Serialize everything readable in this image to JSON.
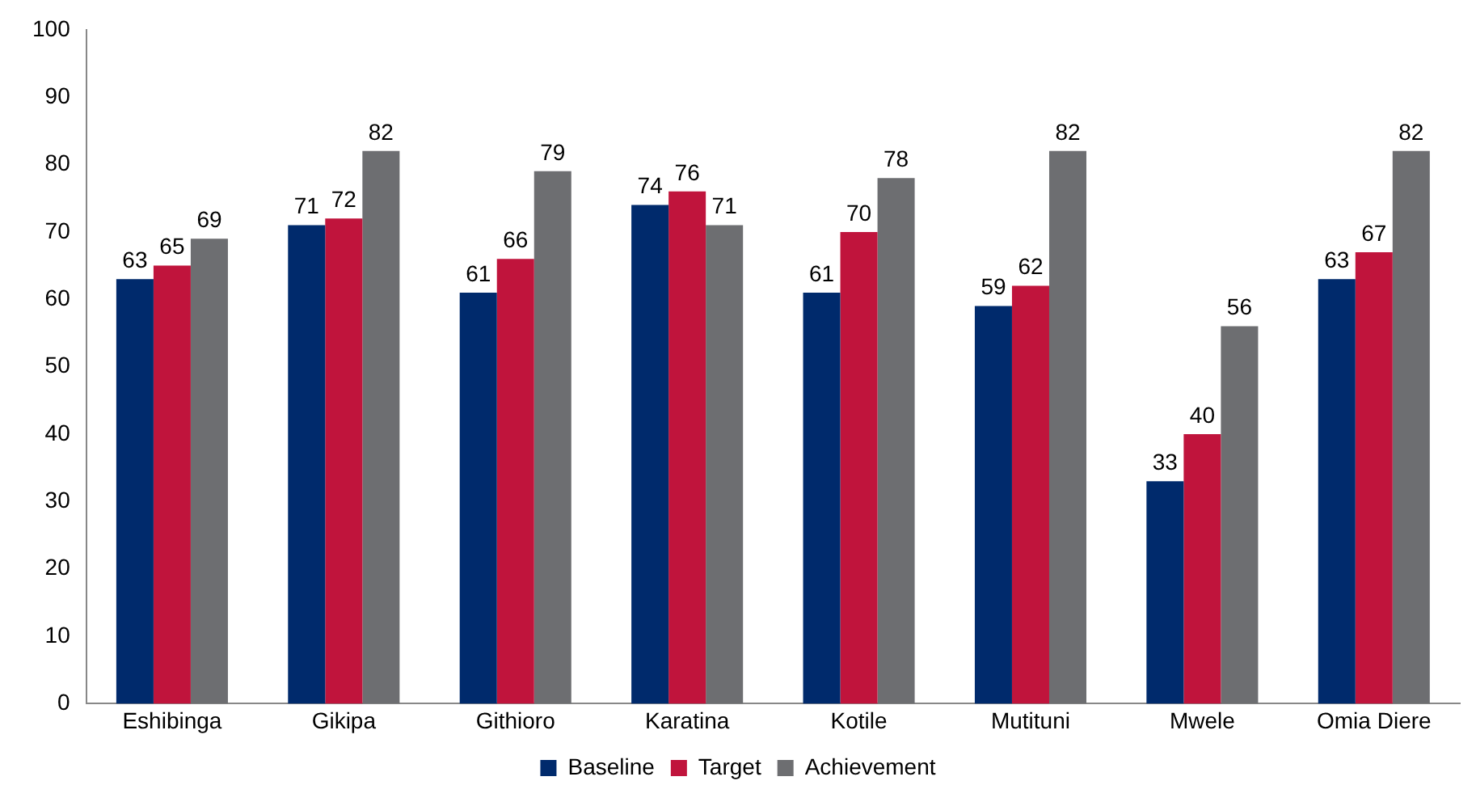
{
  "chart_data": {
    "type": "bar",
    "categories": [
      "Eshibinga",
      "Gikipa",
      "Githioro",
      "Karatina",
      "Kotile",
      "Mutituni",
      "Mwele",
      "Omia Diere"
    ],
    "series": [
      {
        "name": "Baseline",
        "color": "#002a6c",
        "values": [
          63,
          71,
          61,
          74,
          61,
          59,
          33,
          63
        ]
      },
      {
        "name": "Target",
        "color": "#c0143c",
        "values": [
          65,
          72,
          66,
          76,
          70,
          62,
          40,
          67
        ]
      },
      {
        "name": "Achievement",
        "color": "#6d6e71",
        "values": [
          69,
          82,
          79,
          71,
          78,
          82,
          56,
          82
        ]
      }
    ],
    "ylim": [
      0,
      100
    ],
    "yticks": [
      0,
      10,
      20,
      30,
      40,
      50,
      60,
      70,
      80,
      90,
      100
    ],
    "grid": false,
    "legend": "bottom",
    "data_labels": true
  }
}
